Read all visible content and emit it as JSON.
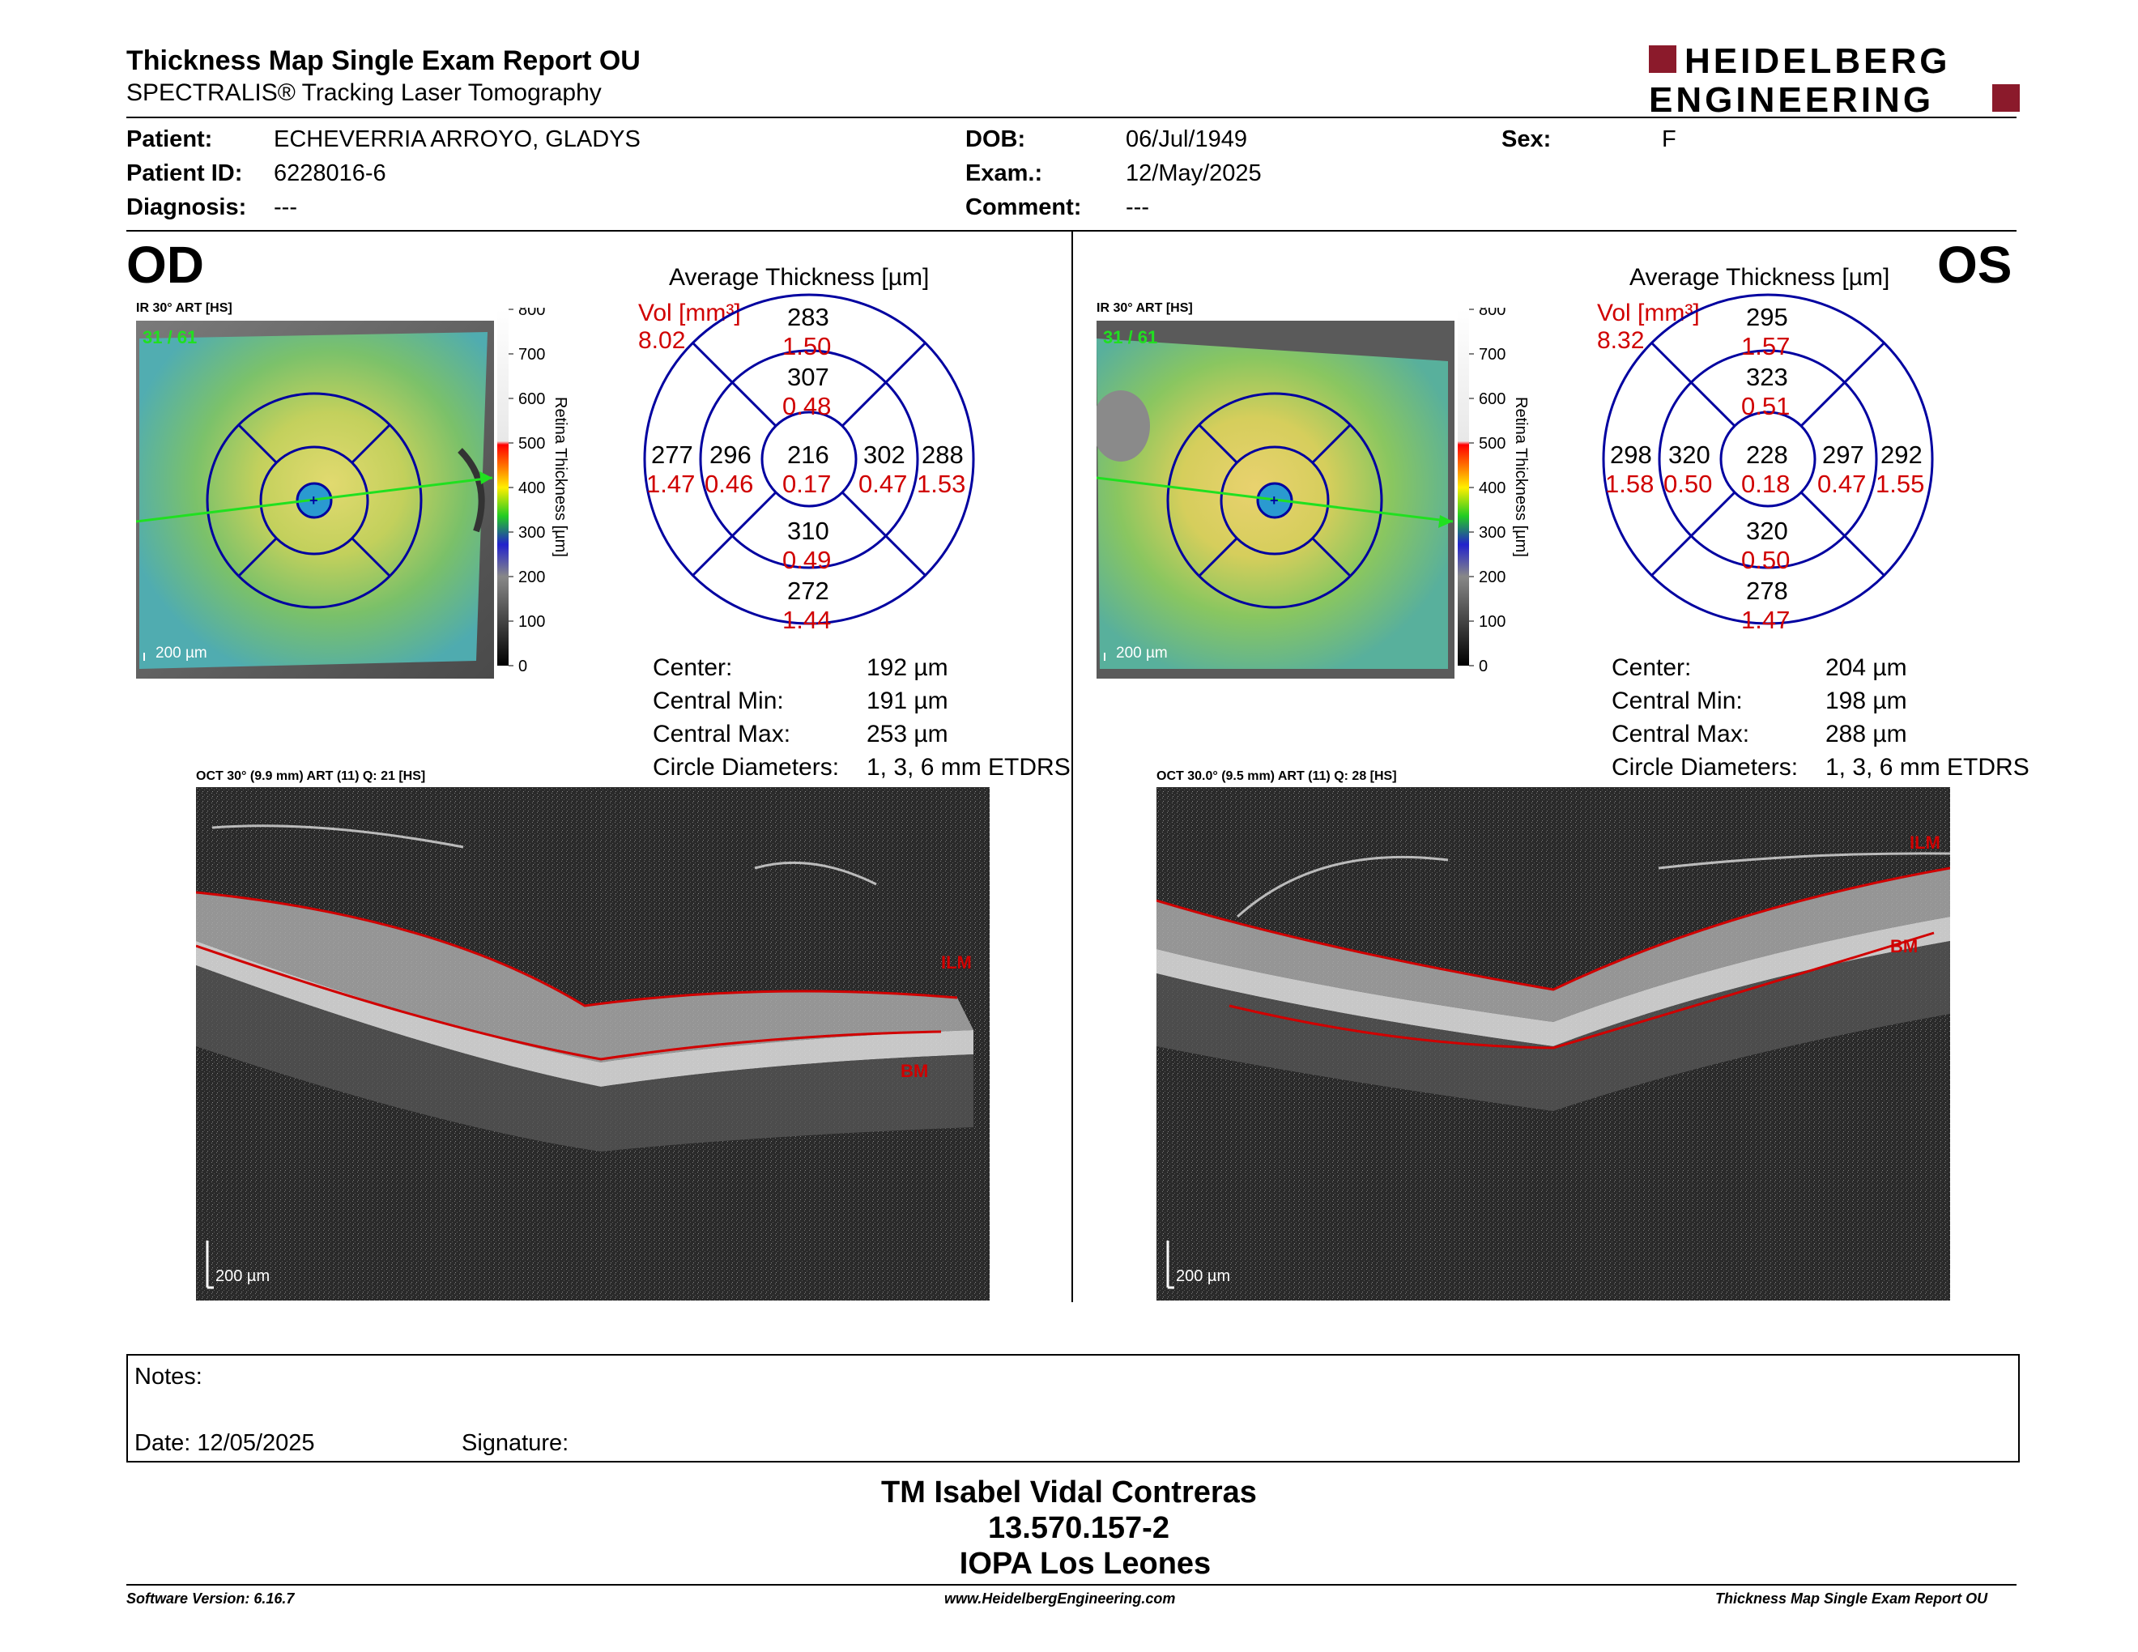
{
  "header": {
    "title": "Thickness Map Single Exam Report OU",
    "subtitle": "SPECTRALIS® Tracking Laser Tomography",
    "logo_line1": "HEIDELBERG",
    "logo_line2": "ENGINEERING",
    "logo_color": "#8b1a2b"
  },
  "patient": {
    "patient_label": "Patient:",
    "patient_value": "ECHEVERRIA ARROYO, GLADYS",
    "id_label": "Patient ID:",
    "id_value": "6228016-6",
    "diagnosis_label": "Diagnosis:",
    "diagnosis_value": "---",
    "dob_label": "DOB:",
    "dob_value": "06/Jul/1949",
    "exam_label": "Exam.:",
    "exam_value": "12/May/2025",
    "comment_label": "Comment:",
    "comment_value": "---",
    "sex_label": "Sex:",
    "sex_value": "F"
  },
  "od": {
    "eye_label": "OD",
    "ir_label": "IR 30° ART [HS]",
    "frame_label": "31 / 61",
    "scale_label": "200 µm",
    "avg_title": "Average Thickness [µm]",
    "vol_label": "Vol [mm³]",
    "vol_value": "8.02",
    "sectors": {
      "outer_top": "283",
      "outer_top_vol": "1.50",
      "inner_top": "307",
      "inner_top_vol": "0.48",
      "outer_left": "277",
      "outer_left_vol": "1.47",
      "inner_left": "296",
      "inner_left_vol": "0.46",
      "center": "216",
      "center_vol": "0.17",
      "inner_right": "302",
      "inner_right_vol": "0.47",
      "outer_right": "288",
      "outer_right_vol": "1.53",
      "inner_bottom": "310",
      "inner_bottom_vol": "0.49",
      "outer_bottom": "272",
      "outer_bottom_vol": "1.44"
    },
    "center_label": "Center:",
    "center_value": "192 µm",
    "cmin_label": "Central Min:",
    "cmin_value": "191 µm",
    "cmax_label": "Central Max:",
    "cmax_value": "253 µm",
    "circ_label": "Circle Diameters:",
    "circ_value": "1, 3, 6 mm ETDRS",
    "oct_label": "OCT 30° (9.9 mm) ART (11) Q: 21 [HS]",
    "ilm": "ILM",
    "bm": "BM",
    "oct_scale": "200 µm"
  },
  "os": {
    "eye_label": "OS",
    "ir_label": "IR 30° ART [HS]",
    "frame_label": "31 / 61",
    "scale_label": "200 µm",
    "avg_title": "Average Thickness [µm]",
    "vol_label": "Vol [mm³]",
    "vol_value": "8.32",
    "sectors": {
      "outer_top": "295",
      "outer_top_vol": "1.57",
      "inner_top": "323",
      "inner_top_vol": "0.51",
      "outer_left": "298",
      "outer_left_vol": "1.58",
      "inner_left": "320",
      "inner_left_vol": "0.50",
      "center": "228",
      "center_vol": "0.18",
      "inner_right": "297",
      "inner_right_vol": "0.47",
      "outer_right": "292",
      "outer_right_vol": "1.55",
      "inner_bottom": "320",
      "inner_bottom_vol": "0.50",
      "outer_bottom": "278",
      "outer_bottom_vol": "1.47"
    },
    "center_label": "Center:",
    "center_value": "204 µm",
    "cmin_label": "Central Min:",
    "cmin_value": "198 µm",
    "cmax_label": "Central Max:",
    "cmax_value": "288 µm",
    "circ_label": "Circle Diameters:",
    "circ_value": "1, 3, 6 mm ETDRS",
    "oct_label": "OCT 30.0° (9.5 mm) ART (11) Q: 28 [HS]",
    "ilm": "ILM",
    "bm": "BM",
    "oct_scale": "200 µm"
  },
  "colorbar": {
    "ticks": [
      "800",
      "700",
      "600",
      "500",
      "400",
      "300",
      "200",
      "100",
      "0"
    ],
    "title": "Retina Thickness [µm]"
  },
  "notes": {
    "notes_label": "Notes:",
    "date_label": "Date: 12/05/2025",
    "signature_label": "Signature:"
  },
  "signature_block": {
    "name": "TM Isabel Vidal Contreras",
    "rut": "13.570.157-2",
    "institution": "IOPA Los Leones"
  },
  "footer": {
    "software": "Software Version: 6.16.7",
    "website": "www.HeidelbergEngineering.com",
    "report": "Thickness Map Single Exam Report OU"
  }
}
